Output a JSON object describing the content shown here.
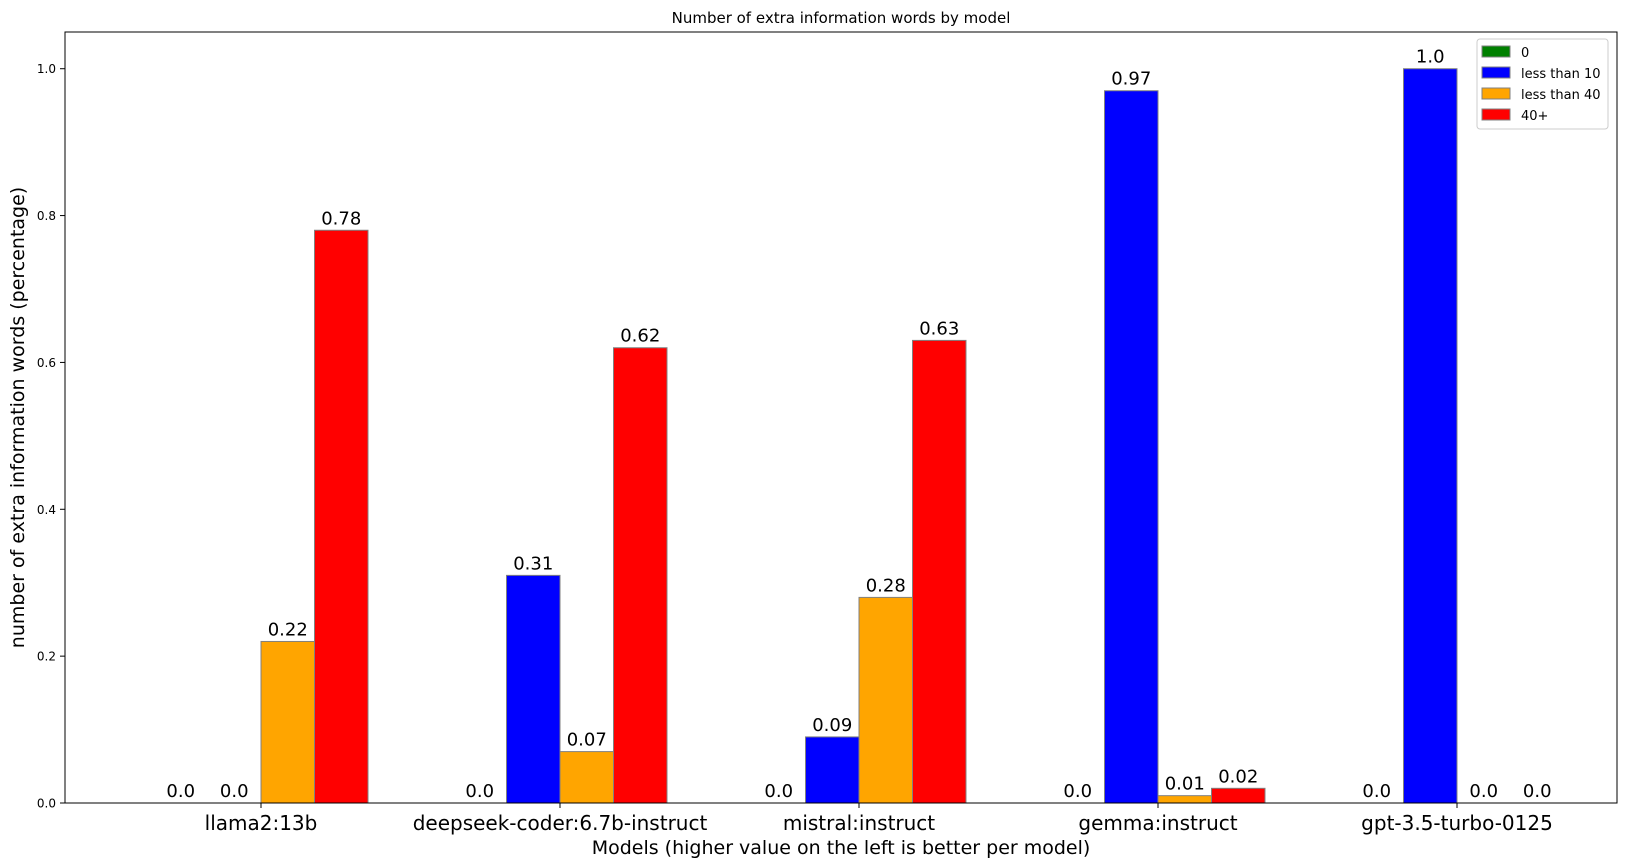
{
  "chart_data": {
    "type": "bar",
    "title": "Number of extra information words by model",
    "xlabel": "Models (higher value on the left is better per model)",
    "ylabel": "number of extra information words (percentage)",
    "categories": [
      "llama2:13b",
      "deepseek-coder:6.7b-instruct",
      "mistral:instruct",
      "gemma:instruct",
      "gpt-3.5-turbo-0125"
    ],
    "series": [
      {
        "name": "0",
        "color": "#008000",
        "values": [
          0.0,
          0.0,
          0.0,
          0.0,
          0.0
        ],
        "labels": [
          "0.0",
          "0.0",
          "0.0",
          "0.0",
          "0.0"
        ]
      },
      {
        "name": "less than 10",
        "color": "#0000ff",
        "values": [
          0.0,
          0.31,
          0.09,
          0.97,
          1.0
        ],
        "labels": [
          "0.0",
          "0.31",
          "0.09",
          "0.97",
          "1.0"
        ]
      },
      {
        "name": "less than 40",
        "color": "#ffa500",
        "values": [
          0.22,
          0.07,
          0.28,
          0.01,
          0.0
        ],
        "labels": [
          "0.22",
          "0.07",
          "0.28",
          "0.01",
          "0.0"
        ]
      },
      {
        "name": "40+",
        "color": "#ff0000",
        "values": [
          0.78,
          0.62,
          0.63,
          0.02,
          0.0
        ],
        "labels": [
          "0.78",
          "0.62",
          "0.63",
          "0.02",
          "0.0"
        ]
      }
    ],
    "ylim": [
      0,
      1.05
    ],
    "yticks": [
      "0.0",
      "0.2",
      "0.4",
      "0.6",
      "0.8",
      "1.0"
    ],
    "grid": false,
    "legend_position": "top-right"
  }
}
